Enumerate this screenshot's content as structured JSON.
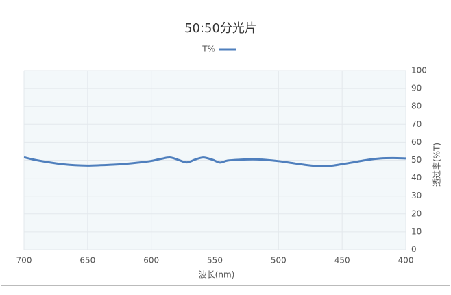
{
  "chart_data": {
    "type": "line",
    "title": "50:50分光片",
    "x_label": "波长(nm)",
    "y_label": "透过率(%T)",
    "x": [
      400,
      410,
      420,
      430,
      440,
      450,
      460,
      470,
      480,
      490,
      500,
      510,
      520,
      530,
      540,
      546,
      552,
      559,
      565,
      572,
      578,
      585,
      592,
      600,
      610,
      620,
      630,
      640,
      650,
      660,
      670,
      680,
      690,
      700
    ],
    "series": [
      {
        "name": "T%",
        "color": "#4f7fbd",
        "values": [
          51,
          51.2,
          51,
          50.2,
          49,
          47.8,
          46.8,
          46.8,
          47.5,
          48.5,
          49.5,
          50.2,
          50.5,
          50.3,
          49.8,
          48.7,
          50.3,
          51.5,
          50.5,
          48.8,
          50,
          51.5,
          50.8,
          49.6,
          48.7,
          48,
          47.5,
          47.2,
          47,
          47.2,
          47.8,
          48.8,
          50,
          51.6
        ]
      }
    ],
    "xlim": [
      400,
      700
    ],
    "xticks": [
      400,
      450,
      500,
      550,
      600,
      650,
      700
    ],
    "ylim": [
      0,
      100
    ],
    "yticks": [
      0,
      10,
      20,
      30,
      40,
      50,
      60,
      70,
      80,
      90,
      100
    ],
    "grid": true,
    "mirrored": true
  }
}
